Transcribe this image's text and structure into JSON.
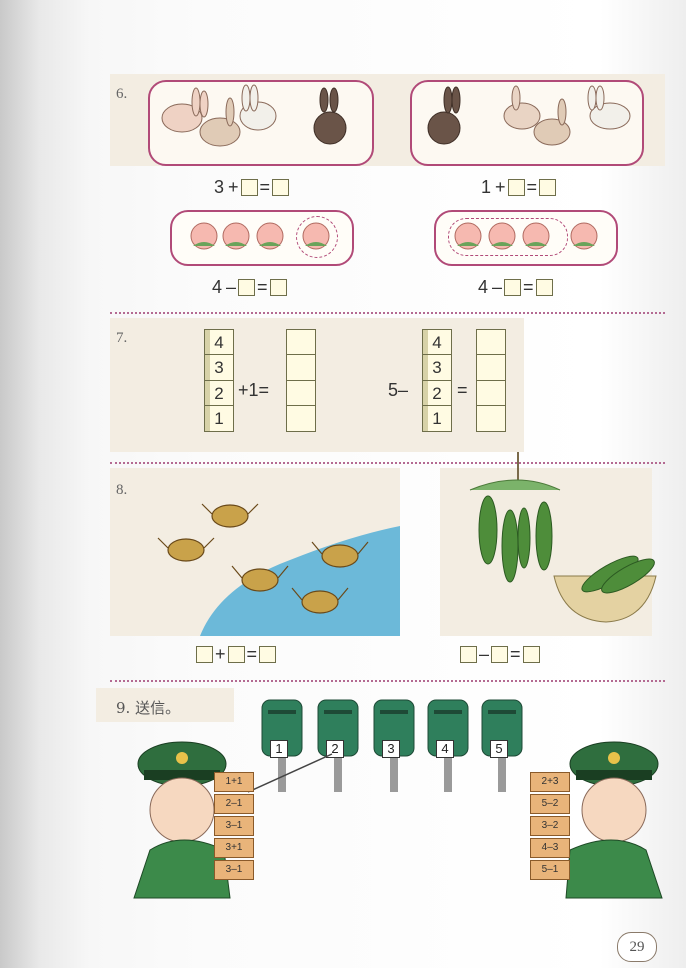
{
  "page_number": "29",
  "exercises": {
    "ex6": {
      "number": "6.",
      "eq_left_top": {
        "a": "3",
        "op": "+",
        "eq": "="
      },
      "eq_right_top": {
        "a": "1",
        "op": "+",
        "eq": "="
      },
      "eq_left_bottom": {
        "a": "4",
        "op": "–",
        "eq": "="
      },
      "eq_right_bottom": {
        "a": "4",
        "op": "–",
        "eq": "="
      }
    },
    "ex7": {
      "number": "7.",
      "left_column": [
        "4",
        "3",
        "2",
        "1"
      ],
      "left_op": "+",
      "left_addend": "1",
      "eq": "=",
      "right_minuend": "5",
      "right_op": "–",
      "right_column": [
        "4",
        "3",
        "2",
        "1"
      ]
    },
    "ex8": {
      "number": "8.",
      "eq_left": {
        "op": "+",
        "eq": "="
      },
      "eq_right": {
        "op": "–",
        "eq": "="
      }
    },
    "ex9": {
      "number": "9.",
      "title": "送信。",
      "mailboxes": [
        "1",
        "2",
        "3",
        "4",
        "5"
      ],
      "left_letters": [
        "1+1",
        "2–1",
        "3–1",
        "3+1",
        "3–1"
      ],
      "right_letters": [
        "2+3",
        "5–2",
        "3–2",
        "4–3",
        "5–1"
      ]
    }
  },
  "colors": {
    "band": "#f3ede2",
    "frame": "#b14a78",
    "box_fill": "#fffbe3",
    "mailbox": "#2f7f5c",
    "water": "#6cb9d9"
  }
}
